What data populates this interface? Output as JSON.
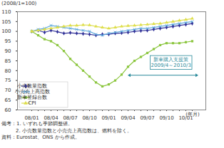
{
  "chart_data": {
    "type": "line",
    "ylabel": "(2008/1=100)",
    "xlabel": "(年月)",
    "categories": [
      "08/01",
      null,
      null,
      "08/04",
      null,
      null,
      "08/07",
      null,
      null,
      "08/10",
      null,
      null,
      "09/01",
      null,
      null,
      "09/04",
      null,
      null,
      "09/07",
      null,
      null,
      "09/10",
      null,
      null,
      "10/01",
      null
    ],
    "series": [
      {
        "name": "小売数量指数",
        "color": "#333399",
        "marker": "diamond",
        "values": [
          100,
          100.5,
          99.5,
          100.5,
          99.8,
          99,
          99.3,
          99,
          98.8,
          98.5,
          98,
          98.5,
          98.5,
          99,
          99.2,
          99.5,
          100,
          100.3,
          100.5,
          101,
          101.5,
          102,
          102.5,
          103,
          103.5,
          104
        ]
      },
      {
        "name": "小売売上高指数",
        "color": "#5fa8dc",
        "marker": "times",
        "values": [
          100,
          101,
          101.5,
          103,
          102.5,
          102,
          101.5,
          101,
          100.5,
          100,
          98.5,
          98,
          99,
          99.5,
          100,
          100.5,
          101,
          101.5,
          101.5,
          102,
          102.5,
          103,
          103.5,
          104,
          104.5,
          105
        ]
      },
      {
        "name": "新車登録台数",
        "color": "#8cc63f",
        "marker": "square",
        "values": [
          100,
          98,
          96,
          95,
          93,
          90,
          86,
          83,
          80,
          77,
          74,
          72,
          73,
          75,
          78,
          82,
          85,
          87,
          89,
          91,
          93,
          94,
          94,
          94,
          94.5,
          95
        ]
      },
      {
        "name": "CPI",
        "color": "#dede4a",
        "marker": "triangle",
        "values": [
          100,
          100.5,
          101,
          101.5,
          102,
          102.5,
          103,
          103,
          103.3,
          103.2,
          102.5,
          102,
          101.5,
          102,
          102.5,
          102.8,
          103,
          103.3,
          103.5,
          103.8,
          104,
          104.5,
          105,
          105.5,
          106,
          106.5
        ]
      }
    ],
    "ylim": [
      60,
      110
    ],
    "yticks": [
      60,
      65,
      70,
      75,
      80,
      85,
      90,
      95,
      100,
      105,
      110
    ],
    "grid": false,
    "legend": "bottom-left",
    "annotation": [
      "新車購入支援策",
      "2009/4～2010/3"
    ],
    "notes": [
      "備考：1. いずれも季節調整値。",
      "2. 小売数量指数と小売売上高指数は、燃料を除く。",
      "資料：Eurostat、ONS から作成。"
    ]
  }
}
